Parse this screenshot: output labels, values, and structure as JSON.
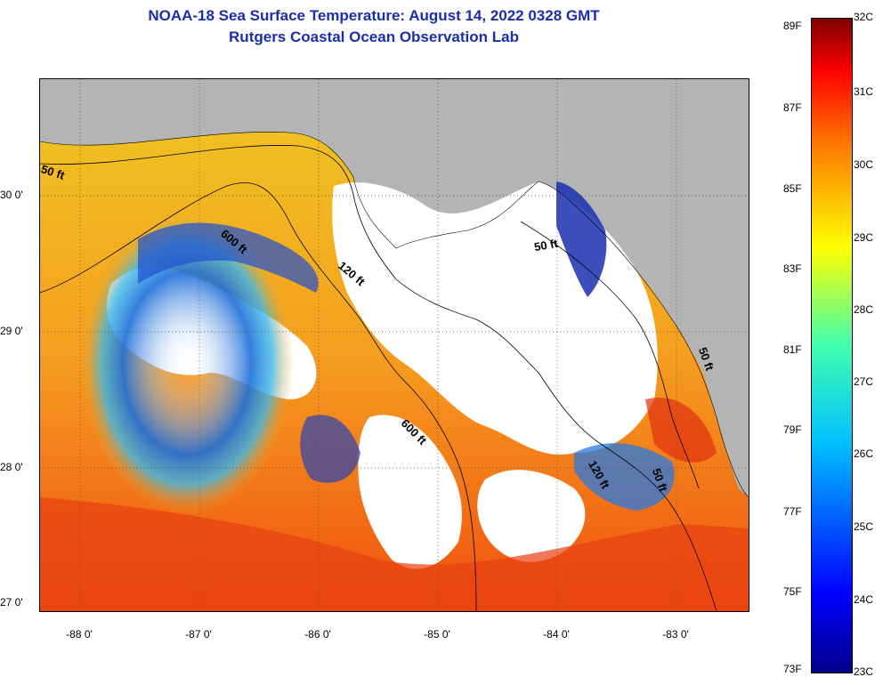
{
  "title": {
    "line1": "NOAA-18 Sea Surface Temperature:  August 14, 2022 0328 GMT",
    "line2": "Rutgers Coastal Ocean Observation Lab"
  },
  "axes": {
    "y_labels": [
      "30 0'",
      "29 0'",
      "28 0'",
      "27 0'"
    ],
    "x_labels": [
      "-88 0'",
      "-87 0'",
      "-86 0'",
      "-85 0'",
      "-84 0'",
      "-83 0'"
    ]
  },
  "colorbar": {
    "fahrenheit": [
      "89F",
      "87F",
      "85F",
      "83F",
      "81F",
      "79F",
      "77F",
      "75F",
      "73F"
    ],
    "celsius": [
      "32C",
      "31C",
      "30C",
      "29C",
      "28C",
      "27C",
      "26C",
      "25C",
      "24C",
      "23C"
    ]
  },
  "contours": {
    "label_50ft_west": "50 ft",
    "label_600ft_north": "600 ft",
    "label_120ft_north": "120 ft",
    "label_50ft_bigbend": "50 ft",
    "label_600ft_south": "600 ft",
    "label_120ft_south": "120 ft",
    "label_50ft_south": "50 ft",
    "label_50ft_coast": "50 ft"
  },
  "colors": {
    "land": "#b4b4b4",
    "cloud": "#ffffff",
    "title": "#1a2fa8"
  }
}
